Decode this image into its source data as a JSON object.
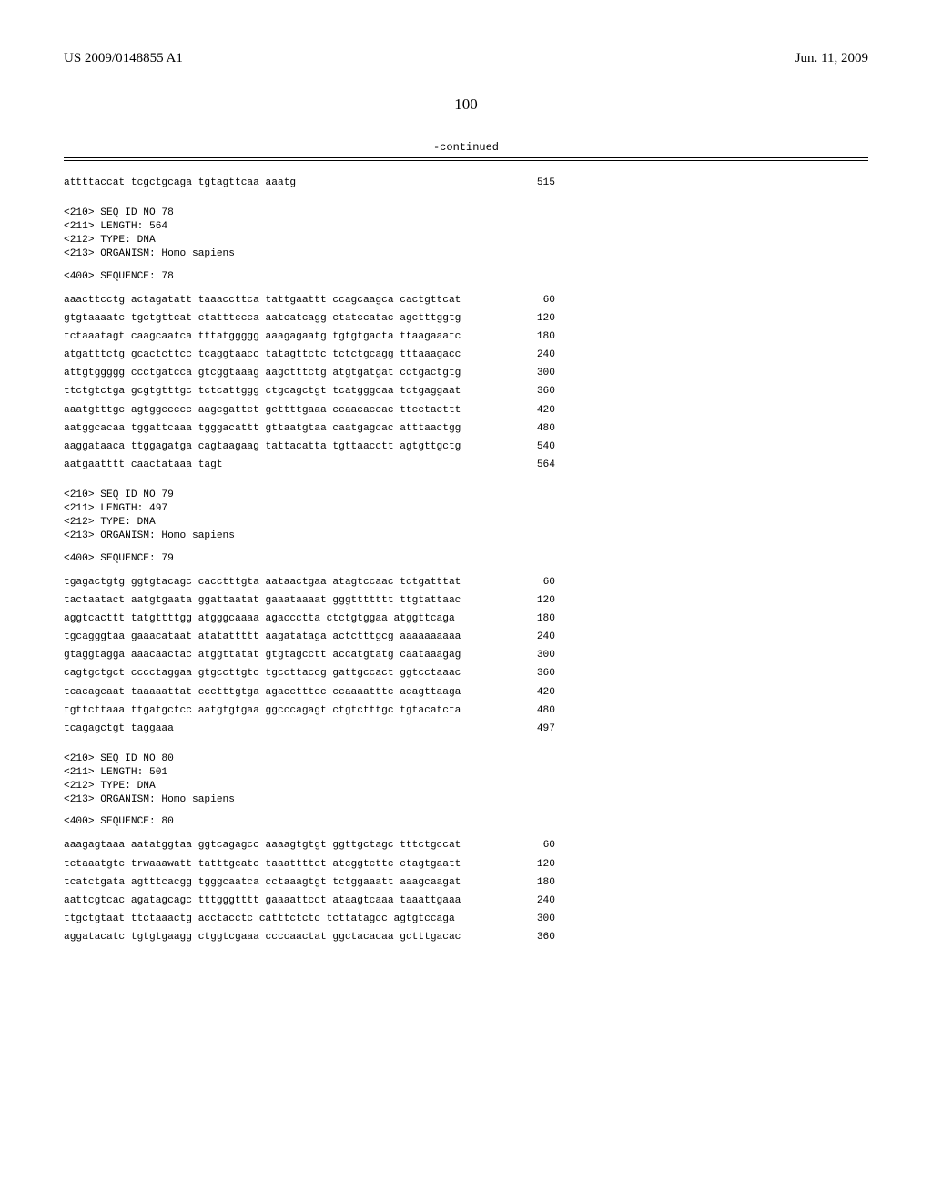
{
  "header": {
    "publication_number": "US 2009/0148855 A1",
    "publication_date": "Jun. 11, 2009",
    "page_number": "100",
    "continued_label": "-continued"
  },
  "records": [
    {
      "leading_rows": [
        {
          "text": "attttaccat tcgctgcaga tgtagttcaa aaatg",
          "pos": "515"
        }
      ],
      "meta_lines": [
        "<210> SEQ ID NO 78",
        "<211> LENGTH: 564",
        "<212> TYPE: DNA",
        "<213> ORGANISM: Homo sapiens"
      ],
      "sequence_label": "<400> SEQUENCE: 78",
      "rows": [
        {
          "text": "aaacttcctg actagatatt taaaccttca tattgaattt ccagcaagca cactgttcat",
          "pos": "60"
        },
        {
          "text": "gtgtaaaatc tgctgttcat ctatttccca aatcatcagg ctatccatac agctttggtg",
          "pos": "120"
        },
        {
          "text": "tctaaatagt caagcaatca tttatggggg aaagagaatg tgtgtgacta ttaagaaatc",
          "pos": "180"
        },
        {
          "text": "atgatttctg gcactcttcc tcaggtaacc tatagttctc tctctgcagg tttaaagacc",
          "pos": "240"
        },
        {
          "text": "attgtggggg ccctgatcca gtcggtaaag aagctttctg atgtgatgat cctgactgtg",
          "pos": "300"
        },
        {
          "text": "ttctgtctga gcgtgtttgc tctcattggg ctgcagctgt tcatgggcaa tctgaggaat",
          "pos": "360"
        },
        {
          "text": "aaatgtttgc agtggccccc aagcgattct gcttttgaaa ccaacaccac ttcctacttt",
          "pos": "420"
        },
        {
          "text": "aatggcacaa tggattcaaa tgggacattt gttaatgtaa caatgagcac atttaactgg",
          "pos": "480"
        },
        {
          "text": "aaggataaca ttggagatga cagtaagaag tattacatta tgttaacctt agtgttgctg",
          "pos": "540"
        },
        {
          "text": "aatgaatttt caactataaa tagt",
          "pos": "564"
        }
      ]
    },
    {
      "meta_lines": [
        "<210> SEQ ID NO 79",
        "<211> LENGTH: 497",
        "<212> TYPE: DNA",
        "<213> ORGANISM: Homo sapiens"
      ],
      "sequence_label": "<400> SEQUENCE: 79",
      "rows": [
        {
          "text": "tgagactgtg ggtgtacagc cacctttgta aataactgaa atagtccaac tctgatttat",
          "pos": "60"
        },
        {
          "text": "tactaatact aatgtgaata ggattaatat gaaataaaat gggttttttt ttgtattaac",
          "pos": "120"
        },
        {
          "text": "aggtcacttt tatgttttgg atgggcaaaa agaccctta ctctgtggaa atggttcaga",
          "pos": "180"
        },
        {
          "text": "tgcagggtaa gaaacataat atatattttt aagatataga actctttgcg aaaaaaaaaa",
          "pos": "240"
        },
        {
          "text": "gtaggtagga aaacaactac atggttatat gtgtagcctt accatgtatg caataaagag",
          "pos": "300"
        },
        {
          "text": "cagtgctgct cccctaggaa gtgccttgtc tgccttaccg gattgccact ggtcctaaac",
          "pos": "360"
        },
        {
          "text": "tcacagcaat taaaaattat ccctttgtga agacctttcc ccaaaatttc acagttaaga",
          "pos": "420"
        },
        {
          "text": "tgttcttaaa ttgatgctcc aatgtgtgaa ggcccagagt ctgtctttgc tgtacatcta",
          "pos": "480"
        },
        {
          "text": "tcagagctgt taggaaa",
          "pos": "497"
        }
      ]
    },
    {
      "meta_lines": [
        "<210> SEQ ID NO 80",
        "<211> LENGTH: 501",
        "<212> TYPE: DNA",
        "<213> ORGANISM: Homo sapiens"
      ],
      "sequence_label": "<400> SEQUENCE: 80",
      "rows": [
        {
          "text": "aaagagtaaa aatatggtaa ggtcagagcc aaaagtgtgt ggttgctagc tttctgccat",
          "pos": "60"
        },
        {
          "text": "tctaaatgtc trwaaawatt tatttgcatc taaattttct atcggtcttc ctagtgaatt",
          "pos": "120"
        },
        {
          "text": "tcatctgata agtttcacgg tgggcaatca cctaaagtgt tctggaaatt aaagcaagat",
          "pos": "180"
        },
        {
          "text": "aattcgtcac agatagcagc tttgggtttt gaaaattcct ataagtcaaa taaattgaaa",
          "pos": "240"
        },
        {
          "text": "ttgctgtaat ttctaaactg acctacctc catttctctc tcttatagcc agtgtccaga",
          "pos": "300"
        },
        {
          "text": "aggatacatc tgtgtgaagg ctggtcgaaa ccccaactat ggctacacaa gctttgacac",
          "pos": "360"
        }
      ]
    }
  ]
}
